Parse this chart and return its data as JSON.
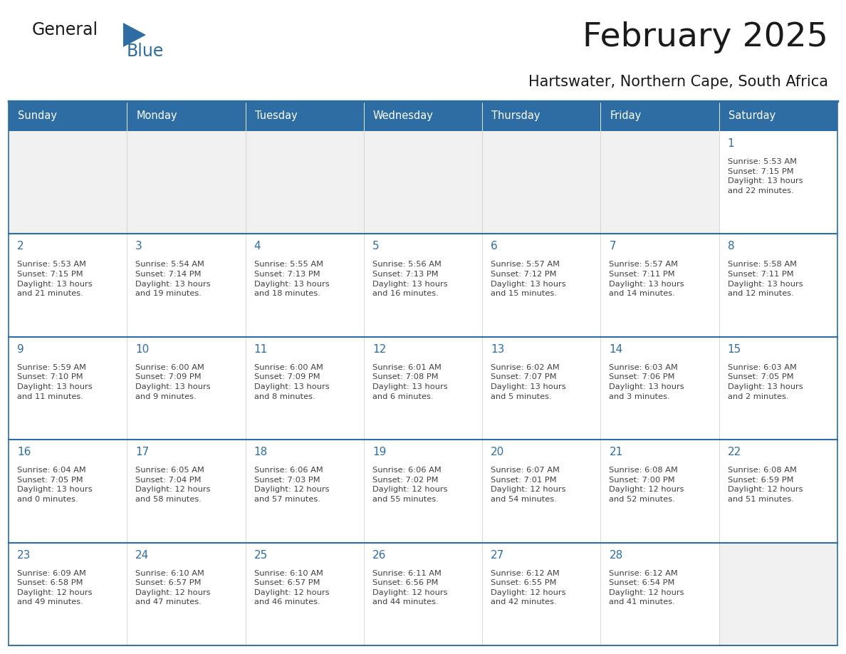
{
  "title": "February 2025",
  "subtitle": "Hartswater, Northern Cape, South Africa",
  "header_bg": "#2E6DA4",
  "header_text_color": "#FFFFFF",
  "cell_bg_white": "#FFFFFF",
  "cell_bg_gray": "#F0F0F0",
  "day_number_color": "#2E6DA4",
  "info_text_color": "#404040",
  "border_color": "#2E6DA4",
  "separator_color": "#2E6DA4",
  "outer_border_color": "#2E6DA4",
  "days_of_week": [
    "Sunday",
    "Monday",
    "Tuesday",
    "Wednesday",
    "Thursday",
    "Friday",
    "Saturday"
  ],
  "weeks": [
    [
      {
        "day": "",
        "info": ""
      },
      {
        "day": "",
        "info": ""
      },
      {
        "day": "",
        "info": ""
      },
      {
        "day": "",
        "info": ""
      },
      {
        "day": "",
        "info": ""
      },
      {
        "day": "",
        "info": ""
      },
      {
        "day": "1",
        "info": "Sunrise: 5:53 AM\nSunset: 7:15 PM\nDaylight: 13 hours\nand 22 minutes."
      }
    ],
    [
      {
        "day": "2",
        "info": "Sunrise: 5:53 AM\nSunset: 7:15 PM\nDaylight: 13 hours\nand 21 minutes."
      },
      {
        "day": "3",
        "info": "Sunrise: 5:54 AM\nSunset: 7:14 PM\nDaylight: 13 hours\nand 19 minutes."
      },
      {
        "day": "4",
        "info": "Sunrise: 5:55 AM\nSunset: 7:13 PM\nDaylight: 13 hours\nand 18 minutes."
      },
      {
        "day": "5",
        "info": "Sunrise: 5:56 AM\nSunset: 7:13 PM\nDaylight: 13 hours\nand 16 minutes."
      },
      {
        "day": "6",
        "info": "Sunrise: 5:57 AM\nSunset: 7:12 PM\nDaylight: 13 hours\nand 15 minutes."
      },
      {
        "day": "7",
        "info": "Sunrise: 5:57 AM\nSunset: 7:11 PM\nDaylight: 13 hours\nand 14 minutes."
      },
      {
        "day": "8",
        "info": "Sunrise: 5:58 AM\nSunset: 7:11 PM\nDaylight: 13 hours\nand 12 minutes."
      }
    ],
    [
      {
        "day": "9",
        "info": "Sunrise: 5:59 AM\nSunset: 7:10 PM\nDaylight: 13 hours\nand 11 minutes."
      },
      {
        "day": "10",
        "info": "Sunrise: 6:00 AM\nSunset: 7:09 PM\nDaylight: 13 hours\nand 9 minutes."
      },
      {
        "day": "11",
        "info": "Sunrise: 6:00 AM\nSunset: 7:09 PM\nDaylight: 13 hours\nand 8 minutes."
      },
      {
        "day": "12",
        "info": "Sunrise: 6:01 AM\nSunset: 7:08 PM\nDaylight: 13 hours\nand 6 minutes."
      },
      {
        "day": "13",
        "info": "Sunrise: 6:02 AM\nSunset: 7:07 PM\nDaylight: 13 hours\nand 5 minutes."
      },
      {
        "day": "14",
        "info": "Sunrise: 6:03 AM\nSunset: 7:06 PM\nDaylight: 13 hours\nand 3 minutes."
      },
      {
        "day": "15",
        "info": "Sunrise: 6:03 AM\nSunset: 7:05 PM\nDaylight: 13 hours\nand 2 minutes."
      }
    ],
    [
      {
        "day": "16",
        "info": "Sunrise: 6:04 AM\nSunset: 7:05 PM\nDaylight: 13 hours\nand 0 minutes."
      },
      {
        "day": "17",
        "info": "Sunrise: 6:05 AM\nSunset: 7:04 PM\nDaylight: 12 hours\nand 58 minutes."
      },
      {
        "day": "18",
        "info": "Sunrise: 6:06 AM\nSunset: 7:03 PM\nDaylight: 12 hours\nand 57 minutes."
      },
      {
        "day": "19",
        "info": "Sunrise: 6:06 AM\nSunset: 7:02 PM\nDaylight: 12 hours\nand 55 minutes."
      },
      {
        "day": "20",
        "info": "Sunrise: 6:07 AM\nSunset: 7:01 PM\nDaylight: 12 hours\nand 54 minutes."
      },
      {
        "day": "21",
        "info": "Sunrise: 6:08 AM\nSunset: 7:00 PM\nDaylight: 12 hours\nand 52 minutes."
      },
      {
        "day": "22",
        "info": "Sunrise: 6:08 AM\nSunset: 6:59 PM\nDaylight: 12 hours\nand 51 minutes."
      }
    ],
    [
      {
        "day": "23",
        "info": "Sunrise: 6:09 AM\nSunset: 6:58 PM\nDaylight: 12 hours\nand 49 minutes."
      },
      {
        "day": "24",
        "info": "Sunrise: 6:10 AM\nSunset: 6:57 PM\nDaylight: 12 hours\nand 47 minutes."
      },
      {
        "day": "25",
        "info": "Sunrise: 6:10 AM\nSunset: 6:57 PM\nDaylight: 12 hours\nand 46 minutes."
      },
      {
        "day": "26",
        "info": "Sunrise: 6:11 AM\nSunset: 6:56 PM\nDaylight: 12 hours\nand 44 minutes."
      },
      {
        "day": "27",
        "info": "Sunrise: 6:12 AM\nSunset: 6:55 PM\nDaylight: 12 hours\nand 42 minutes."
      },
      {
        "day": "28",
        "info": "Sunrise: 6:12 AM\nSunset: 6:54 PM\nDaylight: 12 hours\nand 41 minutes."
      },
      {
        "day": "",
        "info": ""
      }
    ]
  ]
}
